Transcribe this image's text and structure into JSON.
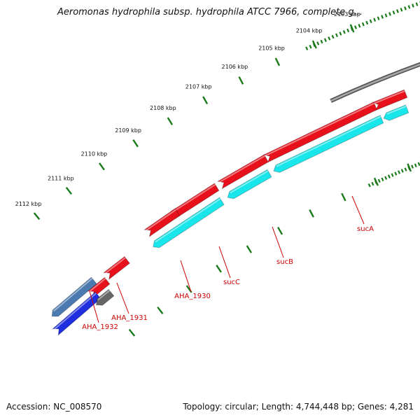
{
  "title": "Aeromonas hydrophila subsp. hydrophila ATCC 7966, complete g...",
  "footer": {
    "accession": "Accession: NC_008570",
    "stats": "Topology: circular; Length: 4,744,448 bp; Genes: 4,281"
  },
  "colors": {
    "backbone": "#777777",
    "ticks": "#1a7a1a",
    "gene_red": "#e8101a",
    "gene_cyan": "#19e6ea",
    "gene_blue": "#1f2fe0",
    "gene_steel": "#4a7ab0",
    "gene_gray": "#666666",
    "label_red": "#cc0000"
  },
  "ticks": [
    {
      "label": "2103 kbp"
    },
    {
      "label": "2104 kbp"
    },
    {
      "label": "2105 kbp"
    },
    {
      "label": "2106 kbp"
    },
    {
      "label": "2107 kbp"
    },
    {
      "label": "2108 kbp"
    },
    {
      "label": "2109 kbp"
    },
    {
      "label": "2110 kbp"
    },
    {
      "label": "2111 kbp"
    },
    {
      "label": "2112 kbp"
    }
  ],
  "gene_labels": [
    {
      "name": "sucA"
    },
    {
      "name": "sucB"
    },
    {
      "name": "sucC"
    },
    {
      "name": "AHA_1930"
    },
    {
      "name": "AHA_1931"
    },
    {
      "name": "AHA_1932"
    }
  ]
}
